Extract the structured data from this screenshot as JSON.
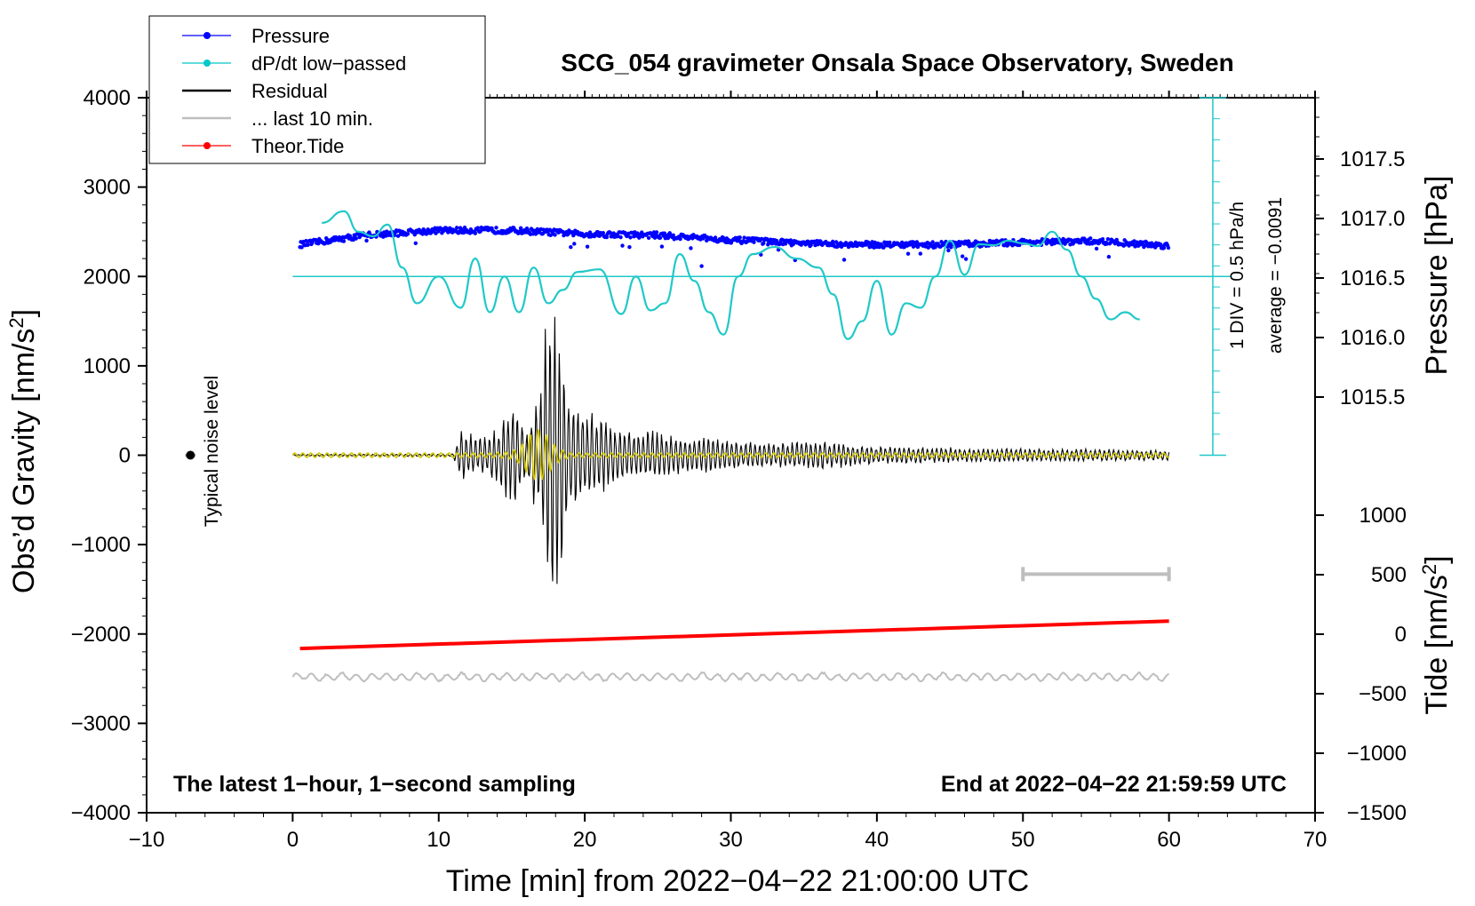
{
  "chart_data": {
    "type": "line",
    "title": "SCG_054 gravimeter Onsala Space Observatory, Sweden",
    "xlabel": "Time [min] from 2022−04−22 21:00:00 UTC",
    "xlim": [
      -10,
      70
    ],
    "xticks": [
      "−10",
      "0",
      "10",
      "20",
      "30",
      "40",
      "50",
      "60",
      "70"
    ],
    "y_left": {
      "label_main": "Obs’d Gravity [nm/s",
      "label_sup": "2",
      "label_end": "]",
      "ylim": [
        -4000,
        4000
      ],
      "ticks": [
        "4000",
        "3000",
        "2000",
        "1000",
        "0",
        "−1000",
        "−2000",
        "−3000",
        "−4000"
      ]
    },
    "y_right_pressure": {
      "label": "Pressure [hPa]",
      "ticks": [
        "1017.5",
        "1017.0",
        "1016.5",
        "1016.0",
        "1015.5"
      ],
      "scale_note": "1 DIV = 0.5 hPa/h",
      "average_note": "average = −0.0091"
    },
    "y_right_tide": {
      "label_main": "Tide [nm/s",
      "label_sup": "2",
      "label_end": "]",
      "ticks": [
        "1000",
        "500",
        "0",
        "−500",
        "−1000",
        "−1500"
      ]
    },
    "legend": {
      "position": "top-left",
      "entries": [
        {
          "label": "Pressure",
          "color": "#0000ff",
          "marker": "dot"
        },
        {
          "label": "dP/dt low−passed",
          "color": "#00c8c8",
          "marker": "dot"
        },
        {
          "label": "Residual",
          "color": "#000000",
          "marker": "line"
        },
        {
          "label": "... last 10 min.",
          "color": "#bebebe",
          "marker": "line"
        },
        {
          "label": "Theor.Tide",
          "color": "#ff0000",
          "marker": "dot"
        }
      ]
    },
    "annotations": {
      "noise_label": "Typical noise level",
      "bottom_left": "The latest 1−hour, 1−second sampling",
      "bottom_right": "End at 2022−04−22 21:59:59 UTC"
    },
    "series": {
      "pressure_hpa": {
        "x": [
          0.5,
          5,
          10,
          15,
          20,
          25,
          30,
          35,
          40,
          45,
          50,
          55,
          60
        ],
        "y": [
          1016.78,
          1016.86,
          1016.9,
          1016.9,
          1016.87,
          1016.86,
          1016.82,
          1016.79,
          1016.78,
          1016.78,
          1016.8,
          1016.81,
          1016.77
        ]
      },
      "dpdt_gravity_units": {
        "x": [
          2,
          3.5,
          4.5,
          5.5,
          6.5,
          7.5,
          8.5,
          10,
          11.5,
          12.5,
          13.5,
          14.5,
          15.5,
          16.5,
          17.5,
          18.5,
          19.5,
          21,
          22.5,
          23.5,
          24.5,
          25.5,
          26.5,
          27.5,
          28.5,
          29.5,
          30.5,
          31.5,
          33,
          34.5,
          36,
          37,
          38,
          39,
          40,
          41,
          42,
          43,
          44,
          45,
          46,
          47,
          48,
          49,
          50,
          51,
          52,
          53,
          54,
          55,
          56,
          57,
          58
        ],
        "y": [
          2600,
          2730,
          2500,
          2450,
          2580,
          2100,
          1700,
          2000,
          1650,
          2200,
          1600,
          2000,
          1600,
          2100,
          1700,
          1850,
          2050,
          2080,
          1580,
          2000,
          1620,
          1700,
          2250,
          1950,
          1600,
          1350,
          2000,
          2250,
          2330,
          2200,
          2100,
          1800,
          1300,
          1500,
          1950,
          1350,
          1700,
          1650,
          2000,
          2400,
          2020,
          2360,
          2350,
          2400,
          2370,
          2340,
          2500,
          2300,
          2000,
          1750,
          1520,
          1600,
          1520
        ]
      },
      "residual_envelope": {
        "x": [
          0,
          11,
          11.5,
          12,
          13,
          14,
          15,
          16,
          17,
          17.5,
          18,
          18.5,
          19,
          20,
          21,
          22,
          23,
          25,
          27,
          30,
          33,
          36,
          40,
          45,
          50,
          55,
          60
        ],
        "amplitude": [
          10,
          15,
          350,
          250,
          220,
          300,
          650,
          300,
          900,
          1900,
          1750,
          1150,
          700,
          550,
          450,
          350,
          300,
          280,
          220,
          180,
          150,
          170,
          100,
          90,
          80,
          70,
          60
        ]
      },
      "last_10_min_bar": {
        "x_start": 50,
        "x_end": 60,
        "value": -1330
      },
      "theoretical_tide_nm_s2": {
        "x": [
          0.5,
          60
        ],
        "y": [
          -120,
          110
        ]
      },
      "noise_level": {
        "x": -7,
        "value": 0
      }
    }
  }
}
